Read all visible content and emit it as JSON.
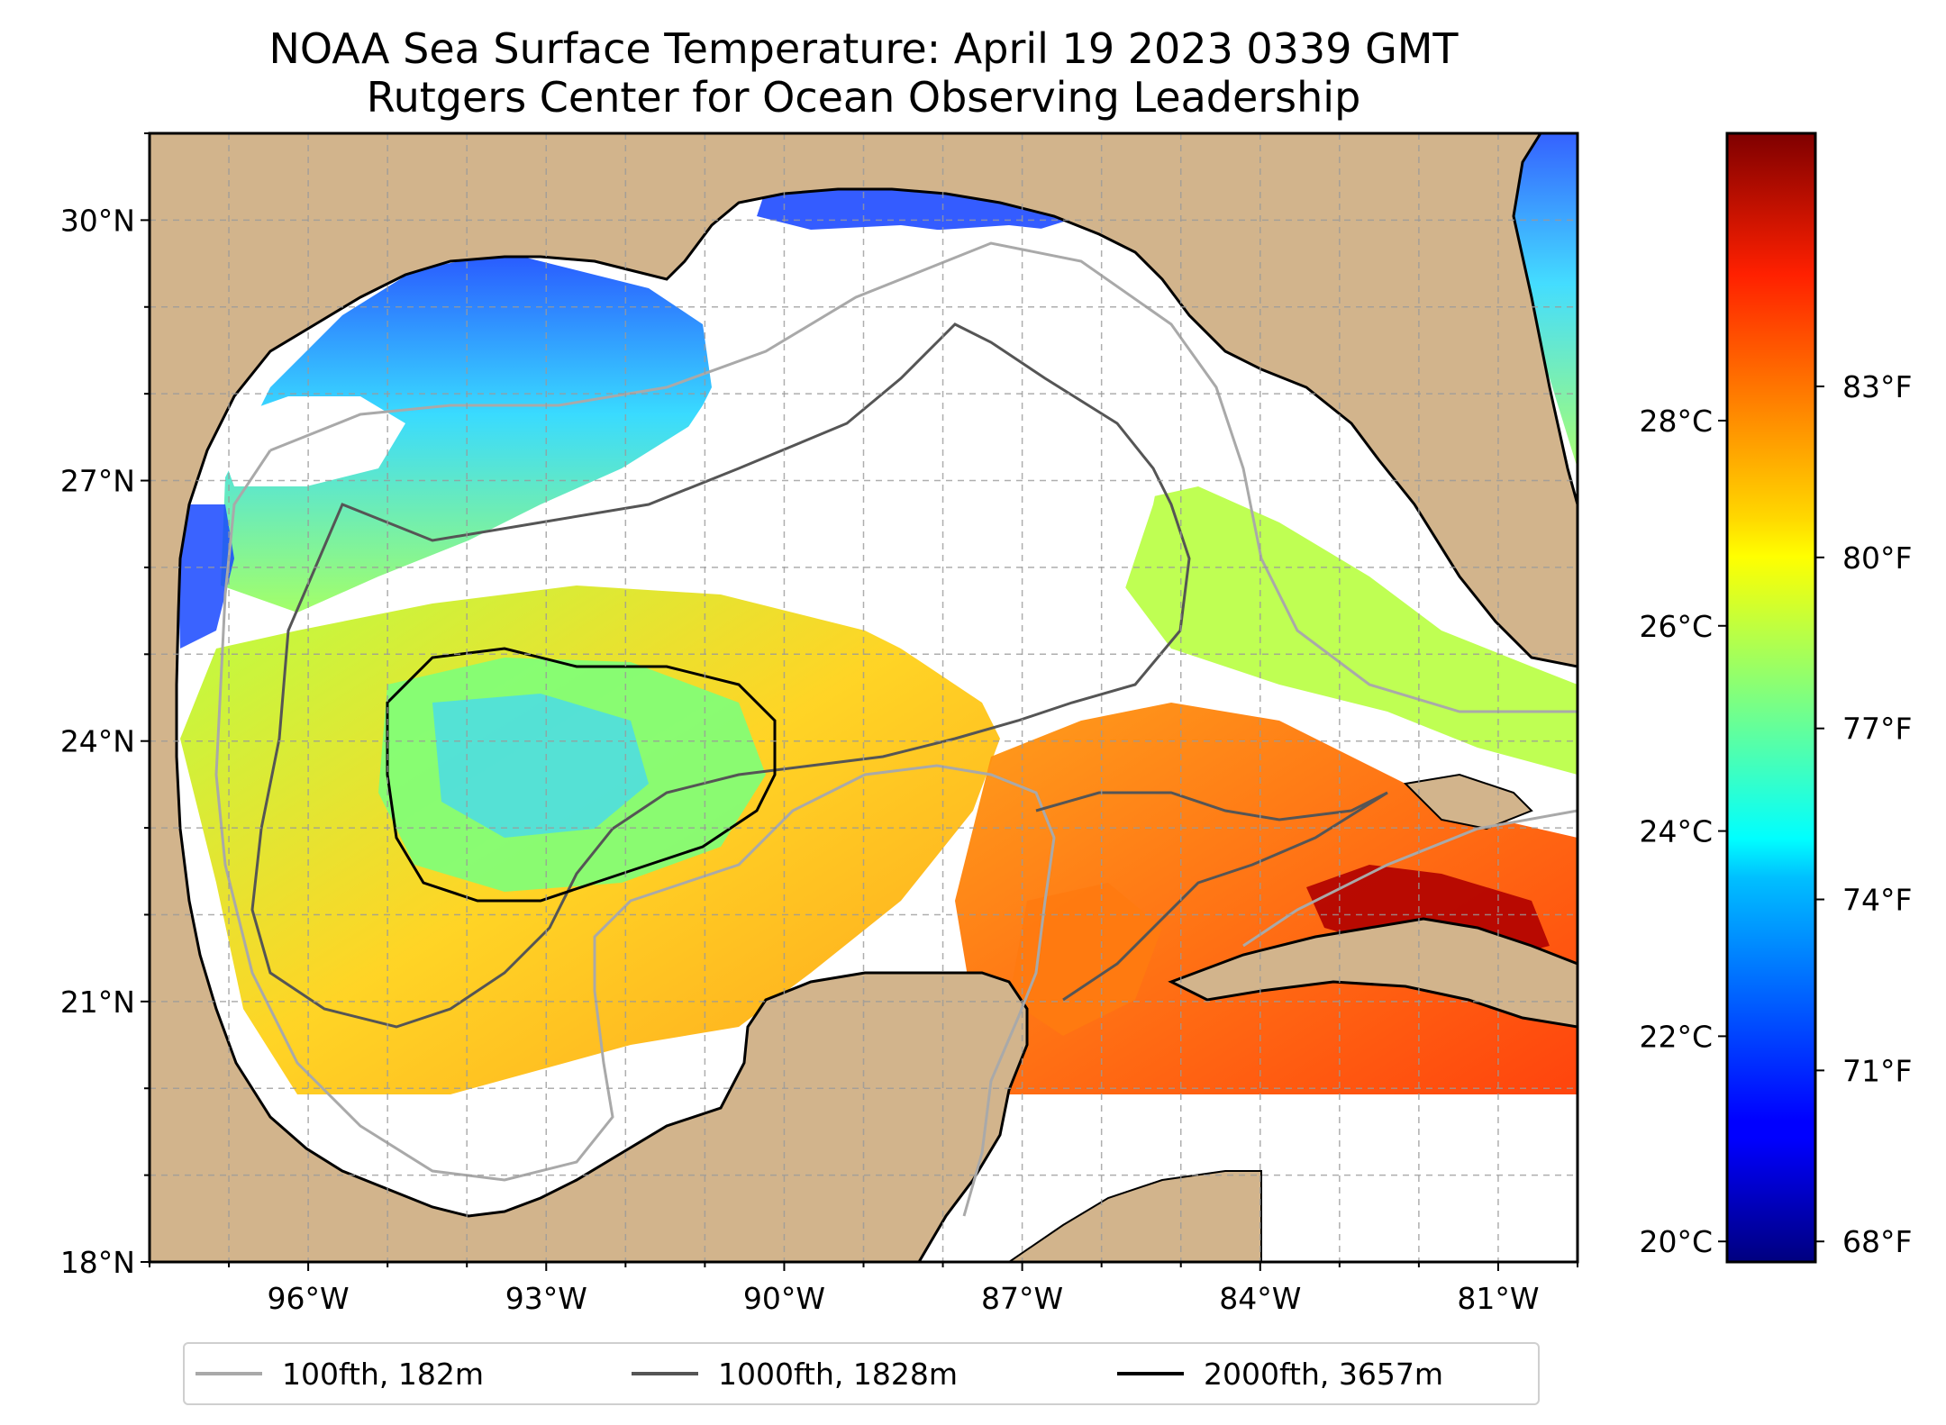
{
  "title": {
    "line1": "NOAA Sea Surface Temperature: April 19 2023 0339 GMT",
    "line2": "Rutgers Center for Ocean Observing Leadership"
  },
  "map": {
    "lon_range": [
      -98.0,
      -80.0
    ],
    "lat_range": [
      18.0,
      31.0
    ],
    "lat_ticks": [
      {
        "value": 18,
        "label": "18°N"
      },
      {
        "value": 21,
        "label": "21°N"
      },
      {
        "value": 24,
        "label": "24°N"
      },
      {
        "value": 27,
        "label": "27°N"
      },
      {
        "value": 30,
        "label": "30°N"
      }
    ],
    "lon_ticks": [
      {
        "value": -96,
        "label": "96°W"
      },
      {
        "value": -93,
        "label": "93°W"
      },
      {
        "value": -90,
        "label": "90°W"
      },
      {
        "value": -87,
        "label": "87°W"
      },
      {
        "value": -84,
        "label": "84°W"
      },
      {
        "value": -81,
        "label": "81°W"
      }
    ],
    "gridlines": "dashed, every 1°",
    "land_color": "#d2b48c",
    "no_data_color": "#ffffff",
    "data_coverage_south_limit_lat": 20.0
  },
  "colorbar": {
    "colormap": "jet",
    "range_c": [
      19.8,
      30.8
    ],
    "celsius_ticks": [
      {
        "value": 20,
        "label": "20°C"
      },
      {
        "value": 22,
        "label": "22°C"
      },
      {
        "value": 24,
        "label": "24°C"
      },
      {
        "value": 26,
        "label": "26°C"
      },
      {
        "value": 28,
        "label": "28°C"
      }
    ],
    "fahrenheit_ticks": [
      {
        "value": 68,
        "label": "68°F"
      },
      {
        "value": 71,
        "label": "71°F"
      },
      {
        "value": 74,
        "label": "74°F"
      },
      {
        "value": 77,
        "label": "77°F"
      },
      {
        "value": 80,
        "label": "80°F"
      },
      {
        "value": 83,
        "label": "83°F"
      }
    ]
  },
  "legend": {
    "items": [
      {
        "label": "100fth, 182m",
        "color": "#a9a9a9"
      },
      {
        "label": "1000fth, 1828m",
        "color": "#555555"
      },
      {
        "label": "2000fth, 3657m",
        "color": "#000000"
      }
    ]
  }
}
